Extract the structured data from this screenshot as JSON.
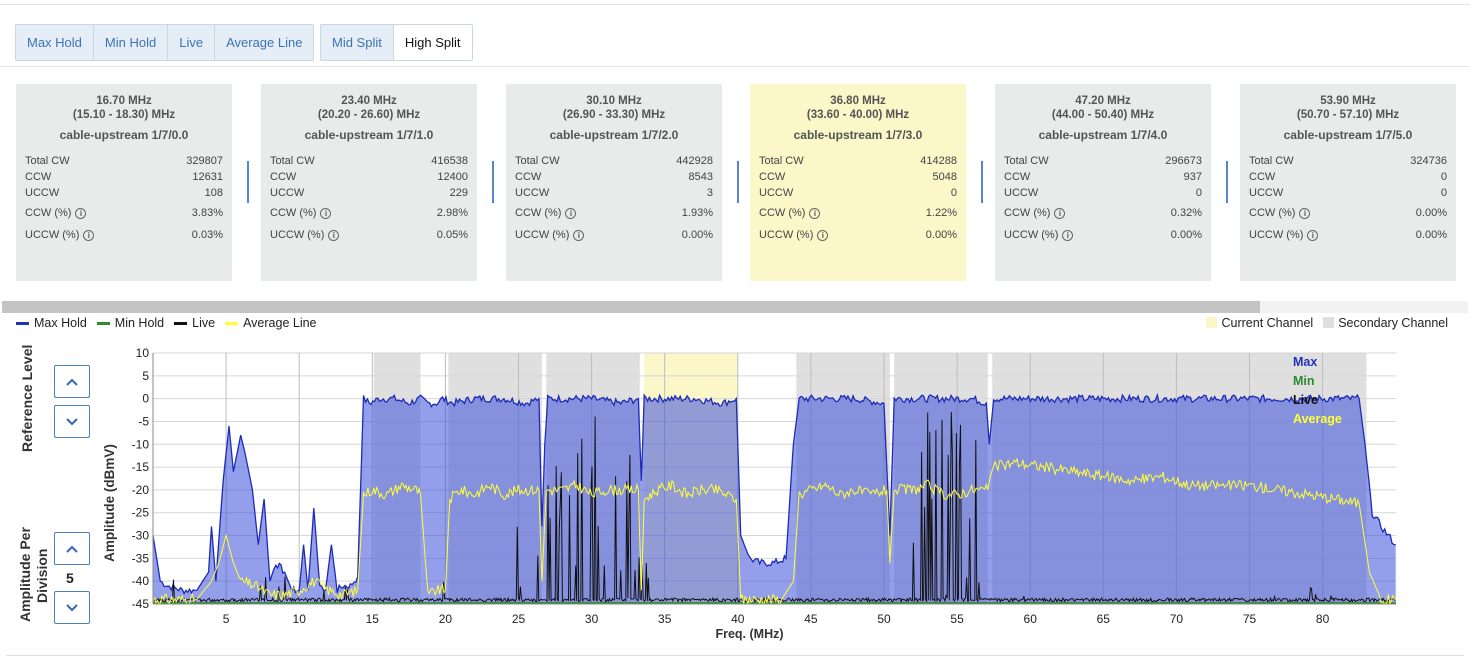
{
  "toolbar": {
    "trace_buttons": [
      {
        "label": "Max Hold",
        "active": false
      },
      {
        "label": "Min Hold",
        "active": false
      },
      {
        "label": "Live",
        "active": false
      },
      {
        "label": "Average Line",
        "active": false
      }
    ],
    "split_buttons": [
      {
        "label": "Mid Split",
        "active": false
      },
      {
        "label": "High Split",
        "active": true
      }
    ]
  },
  "channels": [
    {
      "center": "16.70 MHz",
      "range": "(15.10 - 18.30) MHz",
      "name": "cable-upstream 1/7/0.0",
      "total_cw": "329807",
      "ccw": "12631",
      "uccw": "108",
      "ccw_pct": "3.83%",
      "uccw_pct": "0.03%",
      "current": false
    },
    {
      "center": "23.40 MHz",
      "range": "(20.20 - 26.60) MHz",
      "name": "cable-upstream 1/7/1.0",
      "total_cw": "416538",
      "ccw": "12400",
      "uccw": "229",
      "ccw_pct": "2.98%",
      "uccw_pct": "0.05%",
      "current": false
    },
    {
      "center": "30.10 MHz",
      "range": "(26.90 - 33.30) MHz",
      "name": "cable-upstream 1/7/2.0",
      "total_cw": "442928",
      "ccw": "8543",
      "uccw": "3",
      "ccw_pct": "1.93%",
      "uccw_pct": "0.00%",
      "current": false
    },
    {
      "center": "36.80 MHz",
      "range": "(33.60 - 40.00) MHz",
      "name": "cable-upstream 1/7/3.0",
      "total_cw": "414288",
      "ccw": "5048",
      "uccw": "0",
      "ccw_pct": "1.22%",
      "uccw_pct": "0.00%",
      "current": true
    },
    {
      "center": "47.20 MHz",
      "range": "(44.00 - 50.40) MHz",
      "name": "cable-upstream 1/7/4.0",
      "total_cw": "296673",
      "ccw": "937",
      "uccw": "0",
      "ccw_pct": "0.32%",
      "uccw_pct": "0.00%",
      "current": false
    },
    {
      "center": "53.90 MHz",
      "range": "(50.70 - 57.10) MHz",
      "name": "cable-upstream 1/7/5.0",
      "total_cw": "324736",
      "ccw": "0",
      "uccw": "0",
      "ccw_pct": "0.00%",
      "uccw_pct": "0.00%",
      "current": false
    }
  ],
  "stat_labels": {
    "total_cw": "Total CW",
    "ccw": "CCW",
    "uccw": "UCCW",
    "ccw_pct": "CCW (%)",
    "uccw_pct": "UCCW (%)",
    "info_icon": "i"
  },
  "legend": {
    "series": [
      {
        "label": "Max Hold",
        "color": "#2432b8"
      },
      {
        "label": "Min Hold",
        "color": "#2e8b2e"
      },
      {
        "label": "Live",
        "color": "#111111"
      },
      {
        "label": "Average Line",
        "color": "#ffff33"
      }
    ],
    "current_channel": "Current Channel",
    "secondary_channel": "Secondary Channel",
    "current_color": "#fbf7c8",
    "secondary_color": "#dfdfdf"
  },
  "controls": {
    "reference_level_label": "Reference Level",
    "amplitude_per_division_label": "Amplitude Per Division",
    "amplitude_per_division_value": "5"
  },
  "chart_data": {
    "type": "area",
    "xlabel": "Freq. (MHz)",
    "ylabel": "Amplitude (dBmV)",
    "xlim": [
      0,
      85
    ],
    "ylim": [
      -45,
      10
    ],
    "x_ticks": [
      5,
      10,
      15,
      20,
      25,
      30,
      35,
      40,
      45,
      50,
      55,
      60,
      65,
      70,
      75,
      80
    ],
    "y_ticks": [
      10,
      5,
      0,
      -5,
      -10,
      -15,
      -20,
      -25,
      -30,
      -35,
      -40,
      -45
    ],
    "grid": true,
    "series_labels": [
      {
        "name": "Max",
        "color": "#2432b8"
      },
      {
        "name": "Min",
        "color": "#2e8b2e"
      },
      {
        "name": "Live",
        "color": "#111111"
      },
      {
        "name": "Average",
        "color": "#ffff33"
      }
    ],
    "secondary_channel_bands": [
      [
        15.1,
        18.3
      ],
      [
        20.2,
        26.6
      ],
      [
        26.9,
        33.3
      ],
      [
        44.0,
        50.4
      ],
      [
        50.7,
        57.1
      ],
      [
        57.4,
        83.0
      ]
    ],
    "current_channel_band": [
      33.6,
      40.0
    ],
    "max_hold": [
      [
        0,
        -30
      ],
      [
        0.5,
        -40
      ],
      [
        1,
        -41
      ],
      [
        2,
        -42
      ],
      [
        3,
        -42
      ],
      [
        3.8,
        -38
      ],
      [
        4,
        -28
      ],
      [
        4.3,
        -40
      ],
      [
        4.8,
        -18
      ],
      [
        5.2,
        -6
      ],
      [
        5.5,
        -16
      ],
      [
        6,
        -8
      ],
      [
        6.3,
        -12
      ],
      [
        6.8,
        -20
      ],
      [
        7.2,
        -32
      ],
      [
        7.6,
        -22
      ],
      [
        8,
        -40
      ],
      [
        8.4,
        -36
      ],
      [
        9,
        -38
      ],
      [
        9.5,
        -42
      ],
      [
        10,
        -42
      ],
      [
        10.3,
        -32
      ],
      [
        10.6,
        -42
      ],
      [
        11,
        -24
      ],
      [
        11.4,
        -41
      ],
      [
        11.8,
        -42
      ],
      [
        12.2,
        -32
      ],
      [
        12.6,
        -42
      ],
      [
        13,
        -41
      ],
      [
        13.5,
        -41
      ],
      [
        14,
        -39
      ],
      [
        14.4,
        0
      ],
      [
        14.8,
        -1
      ],
      [
        15.5,
        0
      ],
      [
        16.5,
        0
      ],
      [
        17.5,
        -1
      ],
      [
        18.3,
        0
      ],
      [
        18.8,
        -1
      ],
      [
        19.4,
        -1
      ],
      [
        19.8,
        0
      ],
      [
        20.5,
        -1
      ],
      [
        22,
        0
      ],
      [
        24,
        0
      ],
      [
        25.5,
        -1
      ],
      [
        26.4,
        0
      ],
      [
        26.6,
        -28
      ],
      [
        26.8,
        -10
      ],
      [
        27,
        0
      ],
      [
        28,
        0
      ],
      [
        30,
        0
      ],
      [
        32,
        -1
      ],
      [
        33.2,
        0
      ],
      [
        33.4,
        -18
      ],
      [
        33.6,
        0
      ],
      [
        35,
        0
      ],
      [
        37,
        0
      ],
      [
        39,
        -1
      ],
      [
        39.9,
        0
      ],
      [
        40.2,
        -30
      ],
      [
        40.8,
        -35
      ],
      [
        41.5,
        -36
      ],
      [
        42.5,
        -36
      ],
      [
        43.3,
        -35
      ],
      [
        43.8,
        -10
      ],
      [
        44.2,
        0
      ],
      [
        46,
        0
      ],
      [
        48,
        0
      ],
      [
        50,
        -1
      ],
      [
        50.4,
        -30
      ],
      [
        50.7,
        0
      ],
      [
        52,
        0
      ],
      [
        54,
        0
      ],
      [
        56,
        0
      ],
      [
        57,
        -1
      ],
      [
        57.2,
        -10
      ],
      [
        57.5,
        0
      ],
      [
        60,
        0
      ],
      [
        65,
        0
      ],
      [
        70,
        0
      ],
      [
        75,
        0
      ],
      [
        80,
        0
      ],
      [
        82.5,
        0
      ],
      [
        82.9,
        -10
      ],
      [
        83.4,
        -25
      ],
      [
        84,
        -28
      ],
      [
        84.5,
        -30
      ],
      [
        85,
        -32
      ]
    ],
    "average": [
      [
        0,
        -44
      ],
      [
        1,
        -44
      ],
      [
        2,
        -44
      ],
      [
        3,
        -44
      ],
      [
        4,
        -40
      ],
      [
        4.5,
        -36
      ],
      [
        5,
        -30
      ],
      [
        5.5,
        -36
      ],
      [
        6,
        -40
      ],
      [
        7,
        -41
      ],
      [
        8,
        -43
      ],
      [
        9,
        -43
      ],
      [
        10,
        -42
      ],
      [
        11,
        -40
      ],
      [
        12,
        -42
      ],
      [
        13,
        -43
      ],
      [
        14,
        -42
      ],
      [
        14.4,
        -21
      ],
      [
        15,
        -20
      ],
      [
        16,
        -21
      ],
      [
        17,
        -19
      ],
      [
        18,
        -20
      ],
      [
        18.3,
        -21
      ],
      [
        18.8,
        -43
      ],
      [
        19.4,
        -42
      ],
      [
        20,
        -42
      ],
      [
        20.3,
        -22
      ],
      [
        21,
        -20
      ],
      [
        22,
        -21
      ],
      [
        23,
        -19
      ],
      [
        24,
        -21
      ],
      [
        25,
        -20
      ],
      [
        26.4,
        -20
      ],
      [
        26.6,
        -40
      ],
      [
        26.9,
        -20
      ],
      [
        28,
        -20
      ],
      [
        29,
        -19
      ],
      [
        30,
        -21
      ],
      [
        31,
        -20
      ],
      [
        32,
        -20
      ],
      [
        33.2,
        -20
      ],
      [
        33.4,
        -42
      ],
      [
        33.6,
        -22
      ],
      [
        34.5,
        -20
      ],
      [
        35.5,
        -19
      ],
      [
        36.5,
        -21
      ],
      [
        37.5,
        -20
      ],
      [
        38.5,
        -20
      ],
      [
        39.9,
        -22
      ],
      [
        40.2,
        -44
      ],
      [
        41,
        -44
      ],
      [
        42,
        -44
      ],
      [
        43,
        -44
      ],
      [
        43.8,
        -40
      ],
      [
        44.2,
        -21
      ],
      [
        45,
        -20
      ],
      [
        46,
        -19
      ],
      [
        47,
        -21
      ],
      [
        48,
        -20
      ],
      [
        49,
        -21
      ],
      [
        50.2,
        -20
      ],
      [
        50.4,
        -36
      ],
      [
        50.7,
        -20
      ],
      [
        52,
        -20
      ],
      [
        53,
        -19
      ],
      [
        54,
        -21
      ],
      [
        55,
        -21
      ],
      [
        56,
        -20
      ],
      [
        57.1,
        -20
      ],
      [
        57.4,
        -15
      ],
      [
        59,
        -14
      ],
      [
        61,
        -15
      ],
      [
        63,
        -16
      ],
      [
        65,
        -17
      ],
      [
        67,
        -18
      ],
      [
        69,
        -17
      ],
      [
        71,
        -19
      ],
      [
        73,
        -19
      ],
      [
        75,
        -19
      ],
      [
        77,
        -20
      ],
      [
        79,
        -21
      ],
      [
        81,
        -22
      ],
      [
        82.5,
        -23
      ],
      [
        83.2,
        -38
      ],
      [
        84,
        -44
      ],
      [
        85,
        -44
      ]
    ],
    "min_hold_level": -44.8
  }
}
